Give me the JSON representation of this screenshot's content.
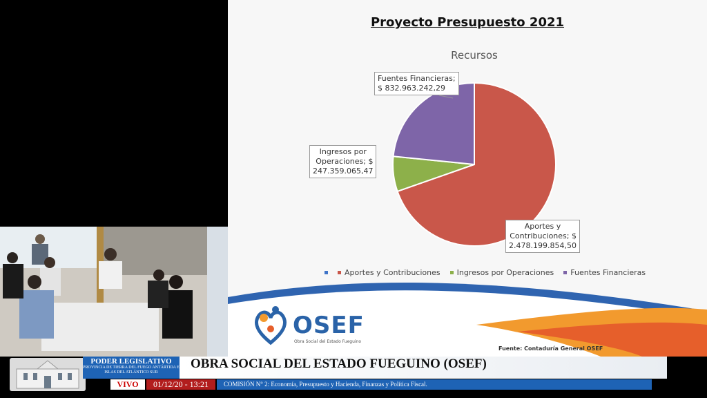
{
  "slide": {
    "title": "Proyecto Presupuesto 2021",
    "source": "Fuente: Contaduría General OSEF",
    "logo_text": "OSEF",
    "logo_subtitle": "Obra Social del Estado Fueguino"
  },
  "chart_data": {
    "type": "pie",
    "title": "Recursos",
    "slices": [
      {
        "name": "Aportes y Contribuciones",
        "value": 2478199854.5,
        "label_line1": "Aportes y",
        "label_line2": "Contribuciones;  $",
        "label_line3": "2.478.199.854,50",
        "color": "#c9574a"
      },
      {
        "name": "Ingresos por Operaciones",
        "value": 247359065.47,
        "label_line1": "Ingresos por",
        "label_line2": "Operaciones;  $",
        "label_line3": "247.359.065,47",
        "color": "#8db04a"
      },
      {
        "name": "Fuentes Financieras",
        "value": 832963242.29,
        "label_line1": "Fuentes Financieras;",
        "label_line2": "$ 832.963.242,29",
        "label_line3": "",
        "color": "#7e65a8"
      }
    ],
    "legend_placement": "bottom",
    "legend_first_color": "#3f74c8"
  },
  "broadcast": {
    "institution": "PODER LEGISLATIVO",
    "province": "PROVINCIA DE TIERRA DEL FUEGO ANTÁRTIDA E ISLAS DEL ATLÁNTICO SUR",
    "program_title": "OBRA SOCIAL DEL ESTADO FUEGUINO (OSEF)",
    "live": "VIVO",
    "datetime": "01/12/20 - 13:21",
    "commission": "COMISIÓN N° 2: Economía, Presupuesto y Hacienda, Finanzas y Política Fiscal."
  }
}
